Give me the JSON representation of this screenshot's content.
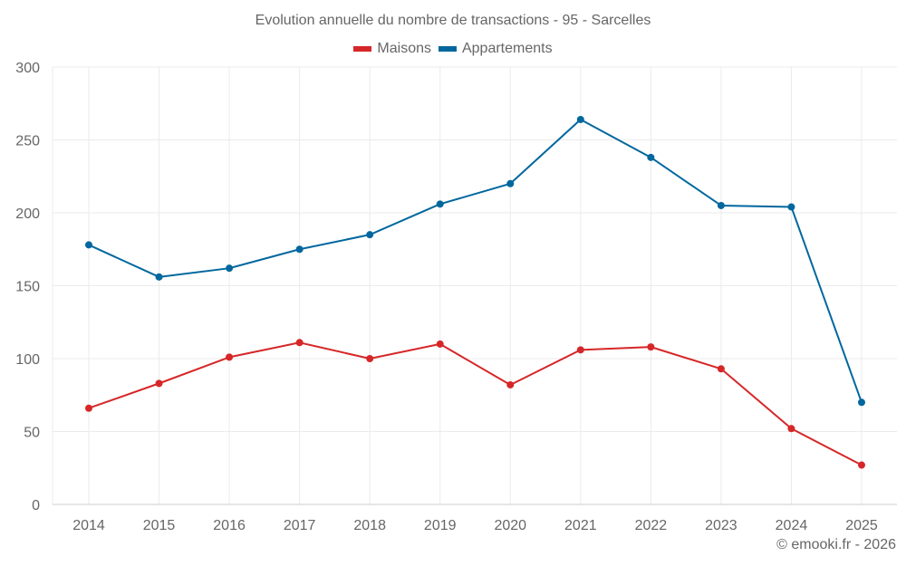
{
  "chart_data": {
    "type": "line",
    "title": "Evolution annuelle du nombre de transactions - 95 - Sarcelles",
    "xlabel": "",
    "ylabel": "",
    "x": [
      "2014",
      "2015",
      "2016",
      "2017",
      "2018",
      "2019",
      "2020",
      "2021",
      "2022",
      "2023",
      "2024",
      "2025"
    ],
    "series": [
      {
        "name": "Maisons",
        "color": "#d62728",
        "values": [
          66,
          83,
          101,
          111,
          100,
          110,
          82,
          106,
          108,
          93,
          52,
          27
        ]
      },
      {
        "name": "Appartements",
        "color": "#00679e",
        "values": [
          178,
          156,
          162,
          175,
          185,
          206,
          220,
          264,
          238,
          205,
          204,
          70
        ]
      }
    ],
    "ylim": [
      0,
      300
    ],
    "yticks": [
      0,
      50,
      100,
      150,
      200,
      250,
      300
    ],
    "grid": true,
    "legend_position": "top-center"
  },
  "credit": "© emooki.fr - 2026"
}
